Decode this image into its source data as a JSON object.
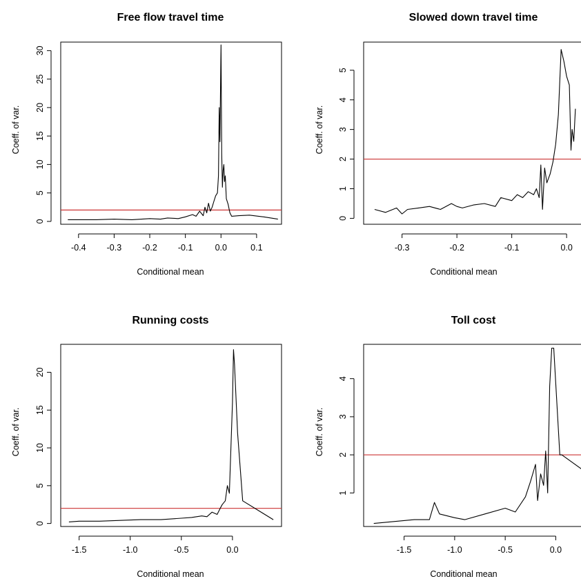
{
  "colors": {
    "reference_line": "#cc3333",
    "series": "#000000"
  },
  "chart_data": [
    {
      "type": "line",
      "title": "Free flow travel time",
      "xlabel": "Conditional mean",
      "ylabel": "Coeff. of var.",
      "xlim": [
        -0.45,
        0.17
      ],
      "ylim": [
        -0.5,
        31.5
      ],
      "xticks": [
        -0.4,
        -0.3,
        -0.2,
        -0.1,
        0.0,
        0.1
      ],
      "xtick_labels": [
        "-0.4",
        "-0.3",
        "-0.2",
        "-0.1",
        "0.0",
        "0.1"
      ],
      "yticks": [
        0,
        5,
        10,
        15,
        20,
        25,
        30
      ],
      "ytick_labels": [
        "0",
        "5",
        "10",
        "15",
        "20",
        "25",
        "30"
      ],
      "hline": 2,
      "series": [
        {
          "x": [
            -0.43,
            -0.4,
            -0.35,
            -0.3,
            -0.25,
            -0.2,
            -0.17,
            -0.15,
            -0.12,
            -0.1,
            -0.08,
            -0.07,
            -0.06,
            -0.05,
            -0.045,
            -0.04,
            -0.035,
            -0.03,
            -0.025,
            -0.02,
            -0.015,
            -0.01,
            -0.007,
            -0.005,
            -0.003,
            0.0,
            0.002,
            0.004,
            0.006,
            0.008,
            0.01,
            0.012,
            0.015,
            0.02,
            0.025,
            0.03,
            0.05,
            0.08,
            0.12,
            0.16
          ],
          "y": [
            0.3,
            0.3,
            0.3,
            0.4,
            0.3,
            0.5,
            0.4,
            0.6,
            0.5,
            0.8,
            1.2,
            0.9,
            1.8,
            1.0,
            2.5,
            1.5,
            3.2,
            1.8,
            2.5,
            3.5,
            4.5,
            5.0,
            8.0,
            20.0,
            14.0,
            31.0,
            12.0,
            6.0,
            9.0,
            10.0,
            7.0,
            8.0,
            4.0,
            3.0,
            1.5,
            0.9,
            1.0,
            1.1,
            0.8,
            0.4
          ]
        }
      ]
    },
    {
      "type": "line",
      "title": "Slowed down travel time",
      "xlabel": "Conditional mean",
      "ylabel": "Coeff. of var.",
      "xlim": [
        -0.37,
        0.03
      ],
      "ylim": [
        -0.2,
        5.95
      ],
      "xticks": [
        -0.3,
        -0.2,
        -0.1,
        0.0
      ],
      "xtick_labels": [
        "-0.3",
        "-0.2",
        "-0.1",
        "0.0"
      ],
      "yticks": [
        0,
        1,
        2,
        3,
        4,
        5
      ],
      "ytick_labels": [
        "0",
        "1",
        "2",
        "3",
        "4",
        "5"
      ],
      "hline": 2,
      "series": [
        {
          "x": [
            -0.35,
            -0.33,
            -0.31,
            -0.3,
            -0.29,
            -0.27,
            -0.25,
            -0.23,
            -0.21,
            -0.2,
            -0.19,
            -0.17,
            -0.15,
            -0.13,
            -0.12,
            -0.1,
            -0.09,
            -0.08,
            -0.07,
            -0.06,
            -0.055,
            -0.05,
            -0.047,
            -0.044,
            -0.04,
            -0.036,
            -0.03,
            -0.025,
            -0.02,
            -0.015,
            -0.01,
            -0.005,
            0.0,
            0.005,
            0.008,
            0.01,
            0.013,
            0.016
          ],
          "y": [
            0.3,
            0.2,
            0.35,
            0.15,
            0.3,
            0.35,
            0.4,
            0.3,
            0.5,
            0.4,
            0.35,
            0.45,
            0.5,
            0.4,
            0.7,
            0.6,
            0.8,
            0.7,
            0.9,
            0.8,
            1.0,
            0.7,
            1.8,
            0.3,
            1.7,
            1.2,
            1.5,
            1.9,
            2.5,
            3.5,
            5.7,
            5.3,
            4.8,
            4.5,
            2.3,
            3.0,
            2.6,
            3.7
          ]
        }
      ]
    },
    {
      "type": "line",
      "title": "Running costs",
      "xlabel": "Conditional mean",
      "ylabel": "Coeff. of var.",
      "xlim": [
        -1.68,
        0.48
      ],
      "ylim": [
        -0.4,
        23.7
      ],
      "xticks": [
        -1.5,
        -1.0,
        -0.5,
        0.0
      ],
      "xtick_labels": [
        "-1.5",
        "-1.0",
        "-0.5",
        "0.0"
      ],
      "yticks": [
        0,
        5,
        10,
        15,
        20
      ],
      "ytick_labels": [
        "0",
        "5",
        "10",
        "15",
        "20"
      ],
      "hline": 2,
      "series": [
        {
          "x": [
            -1.6,
            -1.5,
            -1.3,
            -1.1,
            -0.9,
            -0.7,
            -0.5,
            -0.4,
            -0.3,
            -0.25,
            -0.2,
            -0.15,
            -0.12,
            -0.1,
            -0.07,
            -0.05,
            -0.03,
            -0.01,
            0.0,
            0.01,
            0.02,
            0.05,
            0.1,
            0.4
          ],
          "y": [
            0.2,
            0.3,
            0.3,
            0.4,
            0.5,
            0.5,
            0.7,
            0.8,
            1.0,
            0.9,
            1.5,
            1.2,
            2.0,
            2.5,
            3.0,
            5.0,
            4.0,
            12.0,
            16.0,
            23.0,
            21.0,
            12.0,
            3.0,
            0.5
          ]
        }
      ]
    },
    {
      "type": "line",
      "title": "Toll cost",
      "xlabel": "Conditional mean",
      "ylabel": "Coeff. of var.",
      "xlim": [
        -1.9,
        0.27
      ],
      "ylim": [
        0.12,
        4.9
      ],
      "xticks": [
        -1.5,
        -1.0,
        -0.5,
        0.0
      ],
      "xtick_labels": [
        "-1.5",
        "-1.0",
        "-0.5",
        "0.0"
      ],
      "yticks": [
        1,
        2,
        3,
        4
      ],
      "ytick_labels": [
        "1",
        "2",
        "3",
        "4"
      ],
      "hline": 2,
      "series": [
        {
          "x": [
            -1.8,
            -1.6,
            -1.4,
            -1.25,
            -1.2,
            -1.15,
            -1.0,
            -0.9,
            -0.7,
            -0.5,
            -0.4,
            -0.3,
            -0.25,
            -0.2,
            -0.18,
            -0.15,
            -0.12,
            -0.1,
            -0.08,
            -0.06,
            -0.04,
            -0.02,
            0.04,
            0.06,
            0.27
          ],
          "y": [
            0.2,
            0.25,
            0.3,
            0.3,
            0.75,
            0.45,
            0.35,
            0.3,
            0.45,
            0.6,
            0.5,
            0.9,
            1.3,
            1.75,
            0.8,
            1.5,
            1.2,
            2.1,
            1.0,
            3.8,
            4.8,
            4.8,
            2.0,
            2.0,
            1.6
          ]
        }
      ]
    }
  ]
}
